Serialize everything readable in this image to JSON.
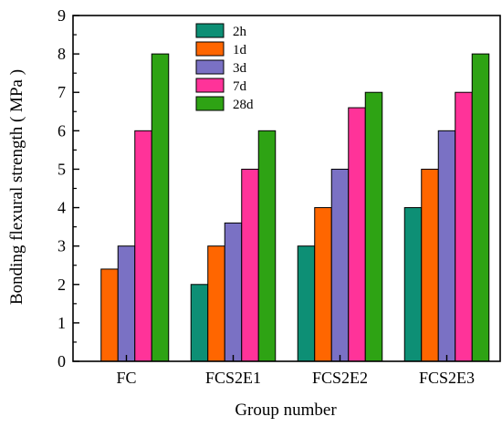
{
  "chart_data": {
    "type": "bar",
    "title": "",
    "xlabel": "Group number",
    "ylabel": "Bonding flexural strength ( MPa )",
    "ylim": [
      0,
      9
    ],
    "yticks": [
      "0",
      "1",
      "2",
      "3",
      "4",
      "5",
      "6",
      "7",
      "8",
      "9"
    ],
    "categories": [
      "FC",
      "FCS2E1",
      "FCS2E2",
      "FCS2E3"
    ],
    "series": [
      {
        "name": "2h",
        "color": "#0d8f75",
        "values": [
          0,
          2,
          3,
          4
        ]
      },
      {
        "name": "1d",
        "color": "#ff6600",
        "values": [
          2.4,
          3,
          4,
          5
        ]
      },
      {
        "name": "3d",
        "color": "#7a71c4",
        "values": [
          3,
          3.6,
          5,
          6
        ]
      },
      {
        "name": "7d",
        "color": "#ff3399",
        "values": [
          6,
          5,
          6.6,
          7
        ]
      },
      {
        "name": "28d",
        "color": "#2ea314",
        "values": [
          8,
          6,
          7,
          8
        ]
      }
    ],
    "grid": false,
    "legend_position": "top-left"
  }
}
